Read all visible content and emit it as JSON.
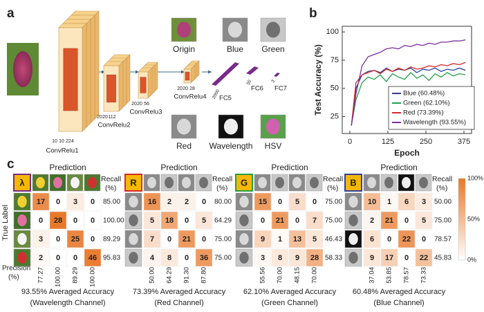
{
  "panel_a": {
    "label": "a",
    "layers": [
      {
        "name": "ConvRelu1",
        "dims": [
          "10",
          "10",
          "224"
        ]
      },
      {
        "name": "ConvRelu2",
        "dims": [
          "20",
          "20",
          "112"
        ]
      },
      {
        "name": "ConvRelu3",
        "dims": [
          "20",
          "20",
          "56"
        ]
      },
      {
        "name": "ConvRelu4",
        "dims": [
          "20",
          "20",
          "28"
        ]
      }
    ],
    "fc": [
      {
        "name": "FC5",
        "size": "2000"
      },
      {
        "name": "FC6",
        "size": "50"
      },
      {
        "name": "FC7",
        "size": "3"
      }
    ],
    "images": [
      "Origin",
      "Blue",
      "Green",
      "Red",
      "Wavelength",
      "HSV"
    ]
  },
  "chart_data": {
    "type": "line",
    "panel_label": "b",
    "xlabel": "Epoch",
    "ylabel": "Test Accuracy (%)",
    "x": [
      5,
      20,
      40,
      60,
      80,
      100,
      120,
      140,
      160,
      180,
      200,
      220,
      240,
      260,
      280,
      300,
      320,
      340,
      360,
      380
    ],
    "xlim": [
      -25,
      400
    ],
    "xticks": [
      0,
      125,
      250,
      375
    ],
    "ylim": [
      10,
      105
    ],
    "yticks": [
      25,
      50,
      75,
      100
    ],
    "legend": "lower right",
    "series": [
      {
        "name": "Blue (60.48%)",
        "color": "#2b3f9e",
        "values": [
          17,
          50,
          62,
          65,
          66,
          64,
          68,
          65,
          67,
          66,
          68,
          64,
          67,
          66,
          68,
          65,
          67,
          66,
          68,
          66
        ]
      },
      {
        "name": "Green (62.10%)",
        "color": "#23a046",
        "values": [
          17,
          40,
          55,
          60,
          58,
          62,
          56,
          63,
          60,
          58,
          64,
          59,
          62,
          57,
          63,
          60,
          64,
          61,
          63,
          62
        ]
      },
      {
        "name": "Red (73.39%)",
        "color": "#d62728",
        "values": [
          17,
          55,
          62,
          64,
          66,
          63,
          67,
          65,
          68,
          66,
          69,
          67,
          68,
          70,
          69,
          71,
          70,
          72,
          71,
          73
        ]
      },
      {
        "name": "Wavelength (93.55%)",
        "color": "#7b2fa0",
        "values": [
          17,
          45,
          70,
          78,
          80,
          82,
          85,
          86,
          85,
          88,
          87,
          89,
          88,
          90,
          89,
          91,
          91,
          92,
          92,
          93
        ]
      }
    ]
  },
  "panel_c": {
    "label": "c",
    "prediction": "Prediction",
    "recall": "Recall",
    "recall_unit": "(%)",
    "true_label": "True Label",
    "precision": "Precision",
    "precision_unit": "(%)",
    "colorbar": [
      "100%",
      "50%",
      "0%"
    ],
    "matrices": [
      {
        "channel": "λ",
        "cells": [
          [
            17,
            0,
            3,
            0
          ],
          [
            0,
            28,
            0,
            0
          ],
          [
            3,
            0,
            25,
            0
          ],
          [
            2,
            0,
            0,
            46
          ]
        ],
        "recall": [
          "85.00",
          "100.00",
          "89.29",
          "95.83"
        ],
        "precision": [
          "77.27",
          "100.00",
          "89.29",
          "100.00"
        ],
        "accuracy": "93.55% Averaged Accuracy",
        "channel_name": "(Wavelength Channel)"
      },
      {
        "channel": "R",
        "cells": [
          [
            16,
            2,
            2,
            0
          ],
          [
            5,
            18,
            0,
            5
          ],
          [
            7,
            0,
            21,
            0
          ],
          [
            4,
            8,
            0,
            36
          ]
        ],
        "recall": [
          "80.00",
          "64.29",
          "75.00",
          "75.00"
        ],
        "precision": [
          "50.00",
          "64.29",
          "91.30",
          "87.80"
        ],
        "accuracy": "73.39% Averaged Accuracy",
        "channel_name": "(Red Channel)"
      },
      {
        "channel": "G",
        "cells": [
          [
            15,
            0,
            5,
            0
          ],
          [
            0,
            21,
            0,
            7
          ],
          [
            9,
            1,
            13,
            5
          ],
          [
            3,
            8,
            9,
            28
          ]
        ],
        "recall": [
          "75.00",
          "75.00",
          "46.43",
          "58.33"
        ],
        "precision": [
          "55.56",
          "70.00",
          "48.15",
          "70.00"
        ],
        "accuracy": "62.10% Averaged Accuracy",
        "channel_name": "(Green Channel)"
      },
      {
        "channel": "B",
        "cells": [
          [
            10,
            1,
            6,
            3
          ],
          [
            2,
            21,
            0,
            5
          ],
          [
            6,
            0,
            22,
            0
          ],
          [
            9,
            17,
            0,
            22
          ]
        ],
        "recall": [
          "50.00",
          "75.00",
          "78.57",
          "45.83"
        ],
        "precision": [
          "37.04",
          "53.85",
          "78.57",
          "73.33"
        ],
        "accuracy": "60.48% Averaged Accuracy",
        "channel_name": "(Blue Channel)"
      }
    ]
  }
}
